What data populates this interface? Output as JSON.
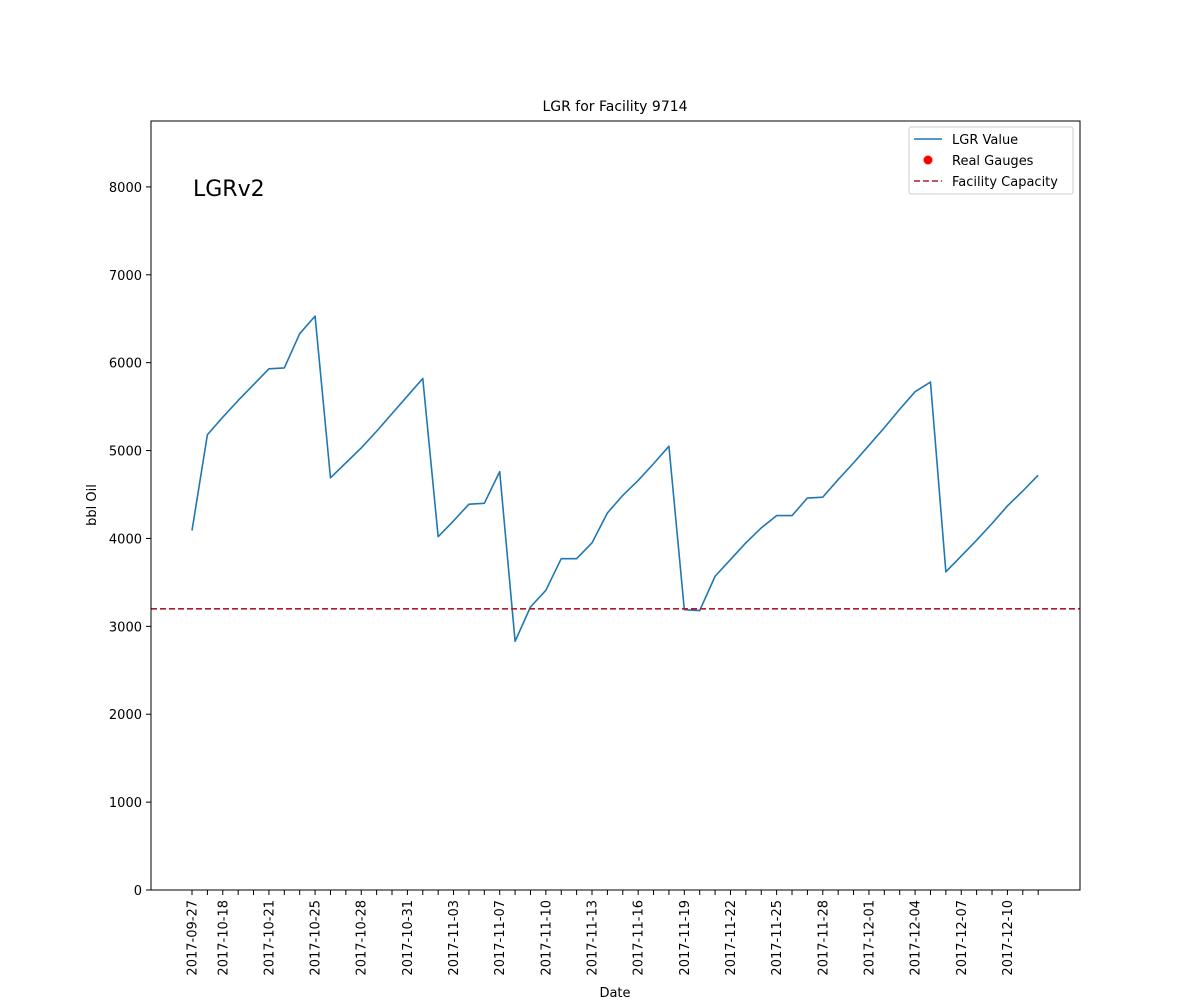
{
  "chart_data": {
    "type": "line",
    "title": "LGR for Facility 9714",
    "xlabel": "Date",
    "ylabel": "bbl Oil",
    "annotation": "LGRv2",
    "ylim": [
      0,
      8750
    ],
    "y_ticks": [
      0,
      1000,
      2000,
      3000,
      4000,
      5000,
      6000,
      7000,
      8000
    ],
    "x_tick_labels": [
      "2017-09-27",
      "2017-10-18",
      "2017-10-21",
      "2017-10-25",
      "2017-10-28",
      "2017-10-31",
      "2017-11-03",
      "2017-11-07",
      "2017-11-10",
      "2017-11-13",
      "2017-11-16",
      "2017-11-19",
      "2017-11-22",
      "2017-11-25",
      "2017-11-28",
      "2017-12-01",
      "2017-12-04",
      "2017-12-07",
      "2017-12-10"
    ],
    "x_tick_every": 3,
    "x_minor_ticks": 56,
    "grid": false,
    "legend_position": "top-right",
    "legend": [
      {
        "label": "LGR Value",
        "marker": "line",
        "color": "#1f77b4"
      },
      {
        "label": "Real Gauges",
        "marker": "dot",
        "color": "#ff0000"
      },
      {
        "label": "Facility Capacity",
        "marker": "dashed",
        "color": "#b01c2e"
      }
    ],
    "series": [
      {
        "name": "LGR Value",
        "color": "#1f77b4",
        "values": [
          4090,
          5180,
          5380,
          5570,
          5750,
          5930,
          5940,
          6330,
          6530,
          4690,
          4860,
          5030,
          5220,
          5420,
          5620,
          5820,
          4020,
          4200,
          4390,
          4400,
          4760,
          2830,
          3220,
          3410,
          3770,
          3770,
          3950,
          4290,
          4490,
          4660,
          4850,
          5050,
          3190,
          3180,
          3570,
          3760,
          3950,
          4120,
          4260,
          4260,
          4460,
          4470,
          4670,
          4860,
          5060,
          5260,
          5470,
          5670,
          5780,
          3620,
          3800,
          3980,
          4170,
          4370,
          4540,
          4720
        ]
      },
      {
        "name": "Facility Capacity",
        "color": "#b01c2e",
        "style": "dashed",
        "y": 3200
      }
    ]
  }
}
